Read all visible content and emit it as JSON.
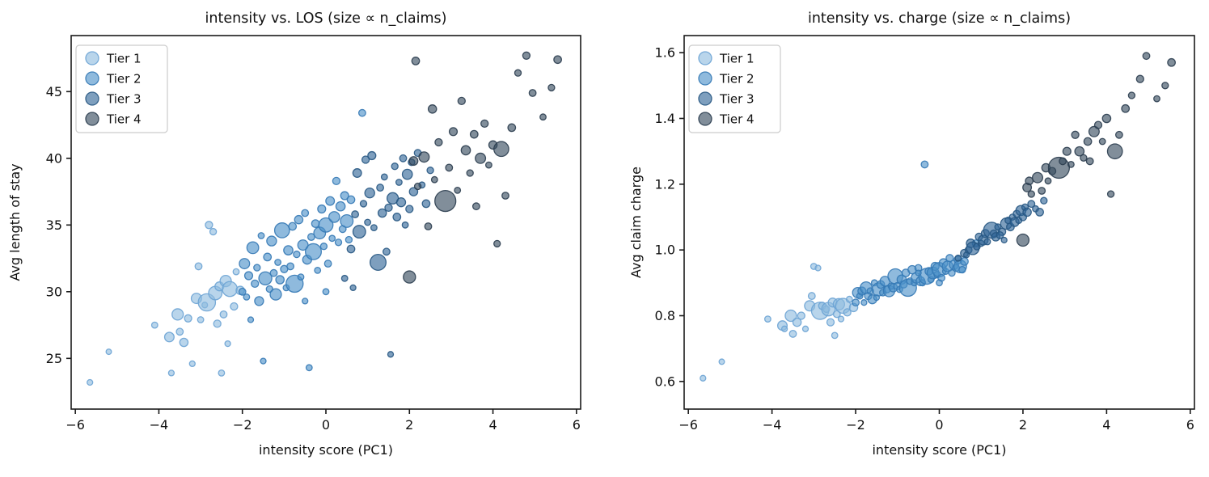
{
  "figure": {
    "background": "#ffffff",
    "text_color": "#111111",
    "spine_color": "#1a1a1a",
    "legend": {
      "labels": [
        "Tier 1",
        "Tier 2",
        "Tier 3",
        "Tier 4"
      ],
      "position": "upper left",
      "border_color": "#cccccc"
    },
    "tiers": [
      {
        "label": "Tier 1",
        "fill": "#8ebbdf",
        "stroke": "#6ba3d4"
      },
      {
        "label": "Tier 2",
        "fill": "#4a90c8",
        "stroke": "#3579b5"
      },
      {
        "label": "Tier 3",
        "fill": "#2f6496",
        "stroke": "#275782"
      },
      {
        "label": "Tier 4",
        "fill": "#34495c",
        "stroke": "#2b3d4f"
      }
    ]
  },
  "chart_data": [
    {
      "type": "scatter",
      "title": "intensity vs. LOS (size ∝ n_claims)",
      "xlabel": "intensity score (PC1)",
      "ylabel": "Avg length of stay",
      "xlim": [
        -6.1,
        6.1
      ],
      "ylim": [
        21.2,
        49.2
      ],
      "xticks": [
        -6,
        -4,
        -2,
        0,
        2,
        4,
        6
      ],
      "yticks": [
        25,
        30,
        35,
        40,
        45
      ],
      "ytick_decimals": 0,
      "grid": false,
      "legend_position": "upper-left",
      "y_field": "los",
      "size_note": "marker area proportional to n_claims"
    },
    {
      "type": "scatter",
      "title": "intensity vs. charge (size ∝ n_claims)",
      "xlabel": "intensity score (PC1)",
      "ylabel": "Avg claim charge",
      "xlim": [
        -6.1,
        6.1
      ],
      "ylim": [
        0.516,
        1.652
      ],
      "xticks": [
        -6,
        -4,
        -2,
        0,
        2,
        4,
        6
      ],
      "yticks": [
        0.6,
        0.8,
        1.0,
        1.2,
        1.4,
        1.6
      ],
      "ytick_decimals": 1,
      "grid": false,
      "legend_position": "upper-left",
      "y_field": "charge",
      "size_note": "marker area proportional to n_claims"
    }
  ],
  "points_columns": [
    "x_intensity",
    "los",
    "charge",
    "n_claims",
    "tier"
  ],
  "points": [
    [
      -5.65,
      23.2,
      0.61,
      60,
      1
    ],
    [
      -5.2,
      25.5,
      0.66,
      55,
      1
    ],
    [
      -4.1,
      27.5,
      0.79,
      70,
      1
    ],
    [
      -3.75,
      26.6,
      0.77,
      170,
      1
    ],
    [
      -3.7,
      23.9,
      0.76,
      60,
      1
    ],
    [
      -3.55,
      28.3,
      0.8,
      240,
      1
    ],
    [
      -3.5,
      27.0,
      0.745,
      90,
      1
    ],
    [
      -3.4,
      26.2,
      0.78,
      130,
      1
    ],
    [
      -3.3,
      28.0,
      0.8,
      100,
      1
    ],
    [
      -3.2,
      24.6,
      0.76,
      60,
      1
    ],
    [
      -3.1,
      29.5,
      0.83,
      200,
      1
    ],
    [
      -3.05,
      31.9,
      0.86,
      90,
      1
    ],
    [
      -3.0,
      27.9,
      0.95,
      70,
      1
    ],
    [
      -2.9,
      29.0,
      0.945,
      60,
      1
    ],
    [
      -2.85,
      29.2,
      0.815,
      560,
      1
    ],
    [
      -2.8,
      35.0,
      0.83,
      100,
      1
    ],
    [
      -2.7,
      34.5,
      0.82,
      80,
      1
    ],
    [
      -2.65,
      29.9,
      0.82,
      340,
      1
    ],
    [
      -2.6,
      27.6,
      0.78,
      100,
      1
    ],
    [
      -2.55,
      30.4,
      0.84,
      150,
      1
    ],
    [
      -2.5,
      23.9,
      0.74,
      70,
      1
    ],
    [
      -2.45,
      28.3,
      0.805,
      90,
      1
    ],
    [
      -2.4,
      30.8,
      0.835,
      240,
      1
    ],
    [
      -2.35,
      26.1,
      0.79,
      60,
      1
    ],
    [
      -2.3,
      30.2,
      0.83,
      420,
      1
    ],
    [
      -2.2,
      28.9,
      0.81,
      100,
      1
    ],
    [
      -2.15,
      31.5,
      0.85,
      70,
      1
    ],
    [
      -2.05,
      30.1,
      0.825,
      130,
      1
    ],
    [
      -2.0,
      30.0,
      0.84,
      90,
      2
    ],
    [
      -1.95,
      32.1,
      0.87,
      200,
      2
    ],
    [
      -1.9,
      29.6,
      0.86,
      70,
      2
    ],
    [
      -1.85,
      31.2,
      0.875,
      120,
      2
    ],
    [
      -1.8,
      27.9,
      0.84,
      60,
      2
    ],
    [
      -1.75,
      33.3,
      0.885,
      260,
      2
    ],
    [
      -1.7,
      30.6,
      0.86,
      100,
      2
    ],
    [
      -1.65,
      31.8,
      0.875,
      80,
      2
    ],
    [
      -1.6,
      29.3,
      0.85,
      150,
      2
    ],
    [
      -1.55,
      34.2,
      0.9,
      70,
      2
    ],
    [
      -1.5,
      24.8,
      0.855,
      60,
      2
    ],
    [
      -1.45,
      31.0,
      0.88,
      320,
      2
    ],
    [
      -1.4,
      32.6,
      0.895,
      110,
      2
    ],
    [
      -1.35,
      30.2,
      0.87,
      80,
      2
    ],
    [
      -1.3,
      33.8,
      0.905,
      180,
      2
    ],
    [
      -1.25,
      31.4,
      0.88,
      90,
      2
    ],
    [
      -1.2,
      29.8,
      0.875,
      240,
      2
    ],
    [
      -1.15,
      32.2,
      0.89,
      70,
      2
    ],
    [
      -1.1,
      30.9,
      0.885,
      130,
      2
    ],
    [
      -1.05,
      34.6,
      0.92,
      420,
      2
    ],
    [
      -1.0,
      31.7,
      0.89,
      100,
      2
    ],
    [
      -0.95,
      30.3,
      0.88,
      70,
      2
    ],
    [
      -0.9,
      33.1,
      0.91,
      160,
      2
    ],
    [
      -0.85,
      31.9,
      0.895,
      90,
      2
    ],
    [
      -0.8,
      34.9,
      0.93,
      110,
      2
    ],
    [
      -0.75,
      30.6,
      0.885,
      550,
      2
    ],
    [
      -0.7,
      32.8,
      0.905,
      80,
      2
    ],
    [
      -0.65,
      35.4,
      0.94,
      130,
      2
    ],
    [
      -0.6,
      31.1,
      0.9,
      70,
      2
    ],
    [
      -0.55,
      33.5,
      0.915,
      200,
      2
    ],
    [
      -0.5,
      35.9,
      0.945,
      90,
      2
    ],
    [
      -0.45,
      32.4,
      0.905,
      150,
      2
    ],
    [
      -0.4,
      24.3,
      0.9,
      70,
      2
    ],
    [
      -0.35,
      34.1,
      1.26,
      90,
      2
    ],
    [
      -0.3,
      33.0,
      0.92,
      480,
      2
    ],
    [
      -0.25,
      35.1,
      0.935,
      110,
      2
    ],
    [
      -0.2,
      31.6,
      0.91,
      70,
      2
    ],
    [
      -0.15,
      34.4,
      0.93,
      260,
      2
    ],
    [
      -0.1,
      36.2,
      0.95,
      120,
      2
    ],
    [
      -0.05,
      33.4,
      0.925,
      80,
      2
    ],
    [
      0.0,
      35.0,
      0.94,
      380,
      2
    ],
    [
      0.05,
      32.1,
      0.915,
      90,
      2
    ],
    [
      0.1,
      36.8,
      0.96,
      140,
      2
    ],
    [
      0.15,
      34.0,
      0.935,
      70,
      2
    ],
    [
      0.2,
      35.6,
      0.95,
      220,
      2
    ],
    [
      0.25,
      38.3,
      0.975,
      100,
      2
    ],
    [
      0.3,
      33.7,
      0.93,
      80,
      2
    ],
    [
      0.35,
      36.4,
      0.955,
      160,
      2
    ],
    [
      0.4,
      34.7,
      0.945,
      90,
      2
    ],
    [
      0.45,
      37.2,
      0.97,
      120,
      2
    ],
    [
      0.5,
      35.3,
      0.95,
      300,
      2
    ],
    [
      0.55,
      33.9,
      0.94,
      80,
      2
    ],
    [
      0.6,
      36.9,
      0.965,
      110,
      2
    ],
    [
      0.87,
      43.4,
      1.02,
      90,
      2
    ],
    [
      0.0,
      30.0,
      0.9,
      70,
      2
    ],
    [
      -0.5,
      29.3,
      0.93,
      60,
      2
    ],
    [
      0.45,
      31.0,
      0.975,
      70,
      3
    ],
    [
      0.6,
      33.2,
      0.99,
      110,
      3
    ],
    [
      0.7,
      35.8,
      1.0,
      90,
      3
    ],
    [
      0.75,
      38.9,
      1.02,
      140,
      3
    ],
    [
      0.8,
      34.5,
      1.005,
      300,
      3
    ],
    [
      0.9,
      36.6,
      1.01,
      80,
      3
    ],
    [
      0.95,
      39.9,
      1.04,
      100,
      3
    ],
    [
      1.0,
      35.2,
      1.02,
      70,
      3
    ],
    [
      1.05,
      37.4,
      1.03,
      180,
      3
    ],
    [
      1.1,
      40.2,
      1.05,
      120,
      3
    ],
    [
      1.15,
      34.8,
      1.025,
      70,
      3
    ],
    [
      1.25,
      32.2,
      1.06,
      480,
      3
    ],
    [
      1.3,
      37.8,
      1.05,
      90,
      3
    ],
    [
      1.35,
      35.9,
      1.04,
      130,
      3
    ],
    [
      1.4,
      38.6,
      1.07,
      70,
      3
    ],
    [
      1.5,
      36.3,
      1.055,
      100,
      3
    ],
    [
      1.55,
      25.3,
      1.03,
      60,
      3
    ],
    [
      1.6,
      37.0,
      1.08,
      240,
      3
    ],
    [
      1.65,
      39.4,
      1.09,
      80,
      3
    ],
    [
      1.7,
      35.6,
      1.07,
      110,
      3
    ],
    [
      1.75,
      38.2,
      1.1,
      70,
      3
    ],
    [
      1.8,
      36.7,
      1.085,
      150,
      3
    ],
    [
      1.85,
      40.0,
      1.11,
      90,
      3
    ],
    [
      1.9,
      35.0,
      1.09,
      70,
      3
    ],
    [
      1.95,
      38.8,
      1.12,
      190,
      3
    ],
    [
      2.0,
      36.2,
      1.1,
      100,
      3
    ],
    [
      2.05,
      39.7,
      1.13,
      80,
      3
    ],
    [
      2.1,
      37.5,
      1.115,
      130,
      3
    ],
    [
      2.2,
      40.4,
      1.14,
      90,
      3
    ],
    [
      2.3,
      38.0,
      1.125,
      70,
      3
    ],
    [
      2.4,
      36.6,
      1.115,
      110,
      3
    ],
    [
      2.5,
      39.1,
      1.15,
      80,
      3
    ],
    [
      1.45,
      33.0,
      1.045,
      90,
      3
    ],
    [
      0.65,
      30.3,
      0.985,
      60,
      3
    ],
    [
      2.0,
      31.1,
      1.03,
      280,
      4
    ],
    [
      2.1,
      39.8,
      1.19,
      140,
      4
    ],
    [
      2.15,
      47.3,
      1.21,
      110,
      4
    ],
    [
      2.2,
      37.9,
      1.17,
      80,
      4
    ],
    [
      2.35,
      40.1,
      1.22,
      200,
      4
    ],
    [
      2.45,
      34.9,
      1.18,
      90,
      4
    ],
    [
      2.55,
      43.7,
      1.25,
      130,
      4
    ],
    [
      2.6,
      38.4,
      1.21,
      70,
      4
    ],
    [
      2.7,
      41.2,
      1.24,
      100,
      4
    ],
    [
      2.86,
      36.8,
      1.25,
      830,
      4
    ],
    [
      2.95,
      39.3,
      1.27,
      90,
      4
    ],
    [
      3.05,
      42.0,
      1.3,
      120,
      4
    ],
    [
      3.15,
      37.6,
      1.26,
      70,
      4
    ],
    [
      3.25,
      44.3,
      1.35,
      100,
      4
    ],
    [
      3.35,
      40.6,
      1.3,
      160,
      4
    ],
    [
      3.45,
      38.9,
      1.28,
      80,
      4
    ],
    [
      3.55,
      41.8,
      1.33,
      110,
      4
    ],
    [
      3.6,
      36.4,
      1.27,
      90,
      4
    ],
    [
      3.7,
      40.0,
      1.36,
      200,
      4
    ],
    [
      3.8,
      42.6,
      1.38,
      100,
      4
    ],
    [
      3.9,
      39.5,
      1.33,
      70,
      4
    ],
    [
      4.0,
      41.0,
      1.4,
      130,
      4
    ],
    [
      4.1,
      33.6,
      1.17,
      80,
      4
    ],
    [
      4.2,
      40.7,
      1.3,
      420,
      4
    ],
    [
      4.3,
      37.2,
      1.35,
      90,
      4
    ],
    [
      4.45,
      42.3,
      1.43,
      110,
      4
    ],
    [
      4.6,
      46.4,
      1.47,
      80,
      4
    ],
    [
      4.8,
      47.7,
      1.52,
      100,
      4
    ],
    [
      4.95,
      44.9,
      1.59,
      90,
      4
    ],
    [
      5.2,
      43.1,
      1.46,
      70,
      4
    ],
    [
      5.4,
      45.3,
      1.5,
      80,
      4
    ],
    [
      5.55,
      47.4,
      1.57,
      110,
      4
    ]
  ]
}
